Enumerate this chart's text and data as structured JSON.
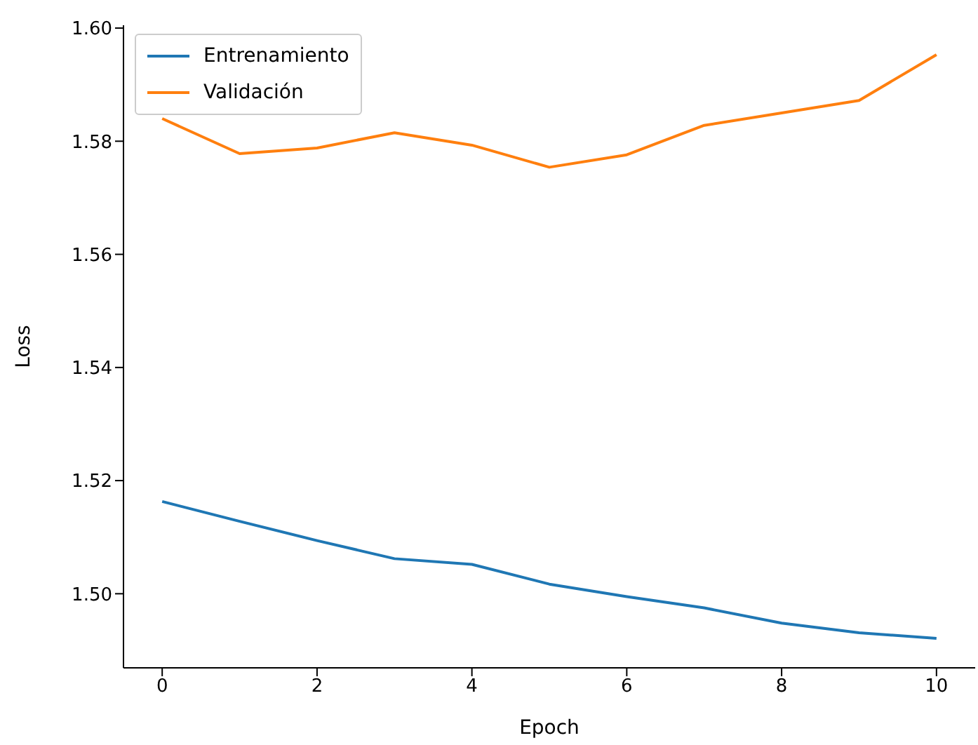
{
  "chart_data": {
    "type": "line",
    "xlabel": "Epoch",
    "ylabel": "Loss",
    "x": [
      0,
      1,
      2,
      3,
      4,
      5,
      6,
      7,
      8,
      9,
      10
    ],
    "series": [
      {
        "name": "Entrenamiento",
        "color": "#1f77b4",
        "values": [
          1.5163,
          1.5128,
          1.5094,
          1.5062,
          1.5052,
          1.5017,
          1.4995,
          1.4975,
          1.4948,
          1.4931,
          1.4921
        ]
      },
      {
        "name": "Validación",
        "color": "#ff7f0e",
        "values": [
          1.584,
          1.5778,
          1.5788,
          1.5815,
          1.5793,
          1.5754,
          1.5776,
          1.5828,
          1.585,
          1.5872,
          1.5953
        ]
      }
    ],
    "xlim": [
      -0.5,
      10.5
    ],
    "xticks": [
      0,
      2,
      4,
      6,
      8,
      10
    ],
    "ylim": [
      1.4869,
      1.6005
    ],
    "yticks": [
      {
        "value": 1.5,
        "label": "1.50"
      },
      {
        "value": 1.52,
        "label": "1.52"
      },
      {
        "value": 1.54,
        "label": "1.54"
      },
      {
        "value": 1.56,
        "label": "1.56"
      },
      {
        "value": 1.58,
        "label": "1.58"
      },
      {
        "value": 1.6,
        "label": "1.60"
      }
    ],
    "grid": false,
    "legend": "top left",
    "marker": "none",
    "line_style": "solid"
  }
}
